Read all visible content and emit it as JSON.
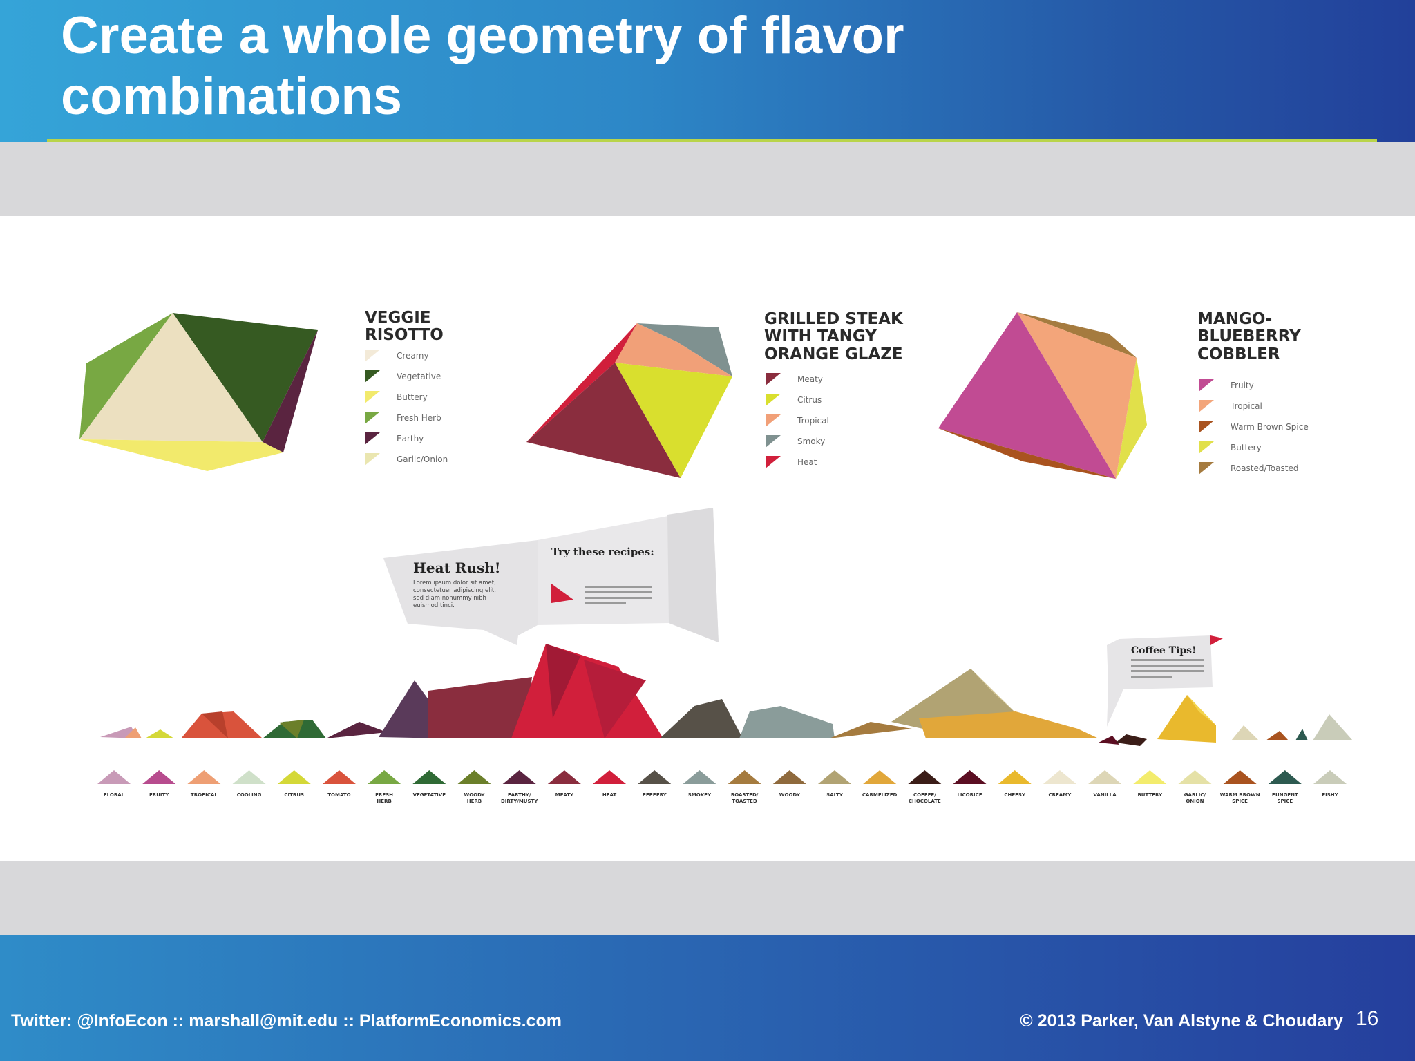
{
  "slide": {
    "title": "Create a whole geometry of flavor combinations",
    "footer_left": "Twitter: @InfoEcon  ::  marshall@mit.edu  ::  PlatformEconomics.com",
    "footer_right": "© 2013 Parker, Van Alstyne & Choudary",
    "page_number": "16"
  },
  "recipes": [
    {
      "title_lines": [
        "VEGGIE",
        "RISOTTO"
      ],
      "legend": [
        {
          "label": "Creamy",
          "color": "#f3ead8"
        },
        {
          "label": "Vegetative",
          "color": "#365a22"
        },
        {
          "label": "Buttery",
          "color": "#f2ea6c"
        },
        {
          "label": "Fresh Herb",
          "color": "#78a843"
        },
        {
          "label": "Earthy",
          "color": "#5a2440"
        },
        {
          "label": "Garlic/Onion",
          "color": "#eae6b0"
        }
      ]
    },
    {
      "title_lines": [
        "GRILLED STEAK",
        "WITH TANGY",
        "ORANGE GLAZE"
      ],
      "legend": [
        {
          "label": "Meaty",
          "color": "#8a2d3e"
        },
        {
          "label": "Citrus",
          "color": "#d9df2e"
        },
        {
          "label": "Tropical",
          "color": "#f1a078"
        },
        {
          "label": "Smoky",
          "color": "#7f9190"
        },
        {
          "label": "Heat",
          "color": "#d11f3b"
        }
      ]
    },
    {
      "title_lines": [
        "MANGO-",
        "BLUEBERRY",
        "COBBLER"
      ],
      "legend": [
        {
          "label": "Fruity",
          "color": "#c14b93"
        },
        {
          "label": "Tropical",
          "color": "#f3a57a"
        },
        {
          "label": "Warm Brown Spice",
          "color": "#a9531f"
        },
        {
          "label": "Buttery",
          "color": "#e1e04a"
        },
        {
          "label": "Roasted/Toasted",
          "color": "#a57b3f"
        }
      ]
    }
  ],
  "callouts": {
    "heat_rush_title": "Heat Rush!",
    "heat_rush_body": [
      "Lorem ipsum dolor sit amet,",
      "consectetuer adipiscing elit,",
      "sed diam nonummy nibh",
      "euismod tinci."
    ],
    "recipes_title": "Try these recipes:",
    "coffee_title": "Coffee Tips!"
  },
  "flavor_keys": [
    {
      "label": "FLORAL",
      "color": "#c89ab7"
    },
    {
      "label": "FRUITY",
      "color": "#b74c8e"
    },
    {
      "label": "TROPICAL",
      "color": "#ee9f74"
    },
    {
      "label": "COOLING",
      "color": "#cfe0c9"
    },
    {
      "label": "CITRUS",
      "color": "#d4d838"
    },
    {
      "label": "TOMATO",
      "color": "#d9533c"
    },
    {
      "label": "FRESH HERB",
      "color": "#78a843"
    },
    {
      "label": "VEGETATIVE",
      "color": "#2f6a35"
    },
    {
      "label": "WOODY HERB",
      "color": "#6b7f2a"
    },
    {
      "label": "EARTHY/ DIRTY/MUSTY",
      "color": "#5a2440"
    },
    {
      "label": "MEATY",
      "color": "#8a2d3e"
    },
    {
      "label": "HEAT",
      "color": "#d11f3b"
    },
    {
      "label": "PEPPERY",
      "color": "#575148"
    },
    {
      "label": "SMOKEY",
      "color": "#8a9c9a"
    },
    {
      "label": "ROASTED/ TOASTED",
      "color": "#a57b3f"
    },
    {
      "label": "WOODY",
      "color": "#8f6a3d"
    },
    {
      "label": "SALTY",
      "color": "#b1a373"
    },
    {
      "label": "CARMELIZED",
      "color": "#e1a73a"
    },
    {
      "label": "COFFEE/ CHOCOLATE",
      "color": "#3b1d18"
    },
    {
      "label": "LICORICE",
      "color": "#5b0e22"
    },
    {
      "label": "CHEESY",
      "color": "#e9b92d"
    },
    {
      "label": "CREAMY",
      "color": "#ede6cf"
    },
    {
      "label": "VANILLA",
      "color": "#ddd6b6"
    },
    {
      "label": "BUTTERY",
      "color": "#f3ec6d"
    },
    {
      "label": "GARLIC/ ONION",
      "color": "#e5e1a6"
    },
    {
      "label": "WARM BROWN SPICE",
      "color": "#a9531f"
    },
    {
      "label": "PUNGENT SPICE",
      "color": "#2d5a50"
    },
    {
      "label": "FISHY",
      "color": "#c9ccb9"
    }
  ]
}
